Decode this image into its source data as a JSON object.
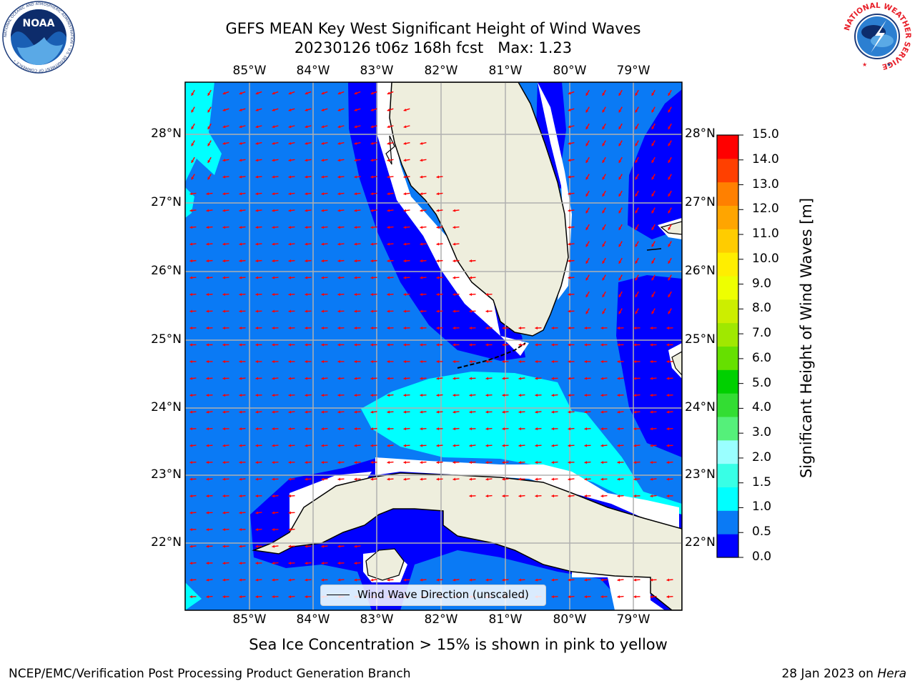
{
  "title_line1": "GEFS MEAN Key West Significant Height of Wind Waves",
  "title_line2": "20230126 t06z 168h fcst   Max: 1.23",
  "longitudes": [
    "85°W",
    "84°W",
    "83°W",
    "82°W",
    "81°W",
    "80°W",
    "79°W"
  ],
  "latitudes": [
    "28°N",
    "27°N",
    "26°N",
    "25°N",
    "24°N",
    "23°N",
    "22°N"
  ],
  "legend": {
    "label": "Wind Wave Direction (unscaled)"
  },
  "colorbar": {
    "title": "Significant Height of Wind Waves [m]",
    "ticks": [
      "15.0",
      "14.0",
      "13.0",
      "12.0",
      "11.0",
      "10.0",
      "9.0",
      "8.0",
      "7.0",
      "6.0",
      "5.0",
      "4.0",
      "3.0",
      "2.0",
      "1.5",
      "1.0",
      "0.5",
      "0.0"
    ],
    "colors": [
      "#0000ff",
      "#0a7af5",
      "#00ffff",
      "#38ffe6",
      "#9affff",
      "#55f07a",
      "#33dd33",
      "#00d000",
      "#66e000",
      "#a0e800",
      "#ccee00",
      "#eeff00",
      "#ffee00",
      "#ffcc00",
      "#ffa500",
      "#ff8000",
      "#ff4000",
      "#ff0000"
    ]
  },
  "map_colors": {
    "land": "#eeeedd",
    "deep_blue": "#0000ff",
    "mid_blue": "#0a7af5",
    "cyan": "#00ffff",
    "arrow": "#ff0000",
    "grid": "#b0b0b0"
  },
  "caption": "Sea Ice Concentration > 15% is shown in pink to yellow",
  "footer_left": "NCEP/EMC/Verification Post Processing Product Generation Branch",
  "footer_right_date": "28 Jan 2023 on ",
  "footer_right_host": "Hera",
  "logos": {
    "noaa_text": "NOAA",
    "noaa_ring": "NATIONAL OCEANIC AND ATMOSPHERIC ADMINISTRATION • U.S. DEPARTMENT OF COMMERCE •",
    "nws_ring": "NATIONAL WEATHER SERVICE"
  }
}
